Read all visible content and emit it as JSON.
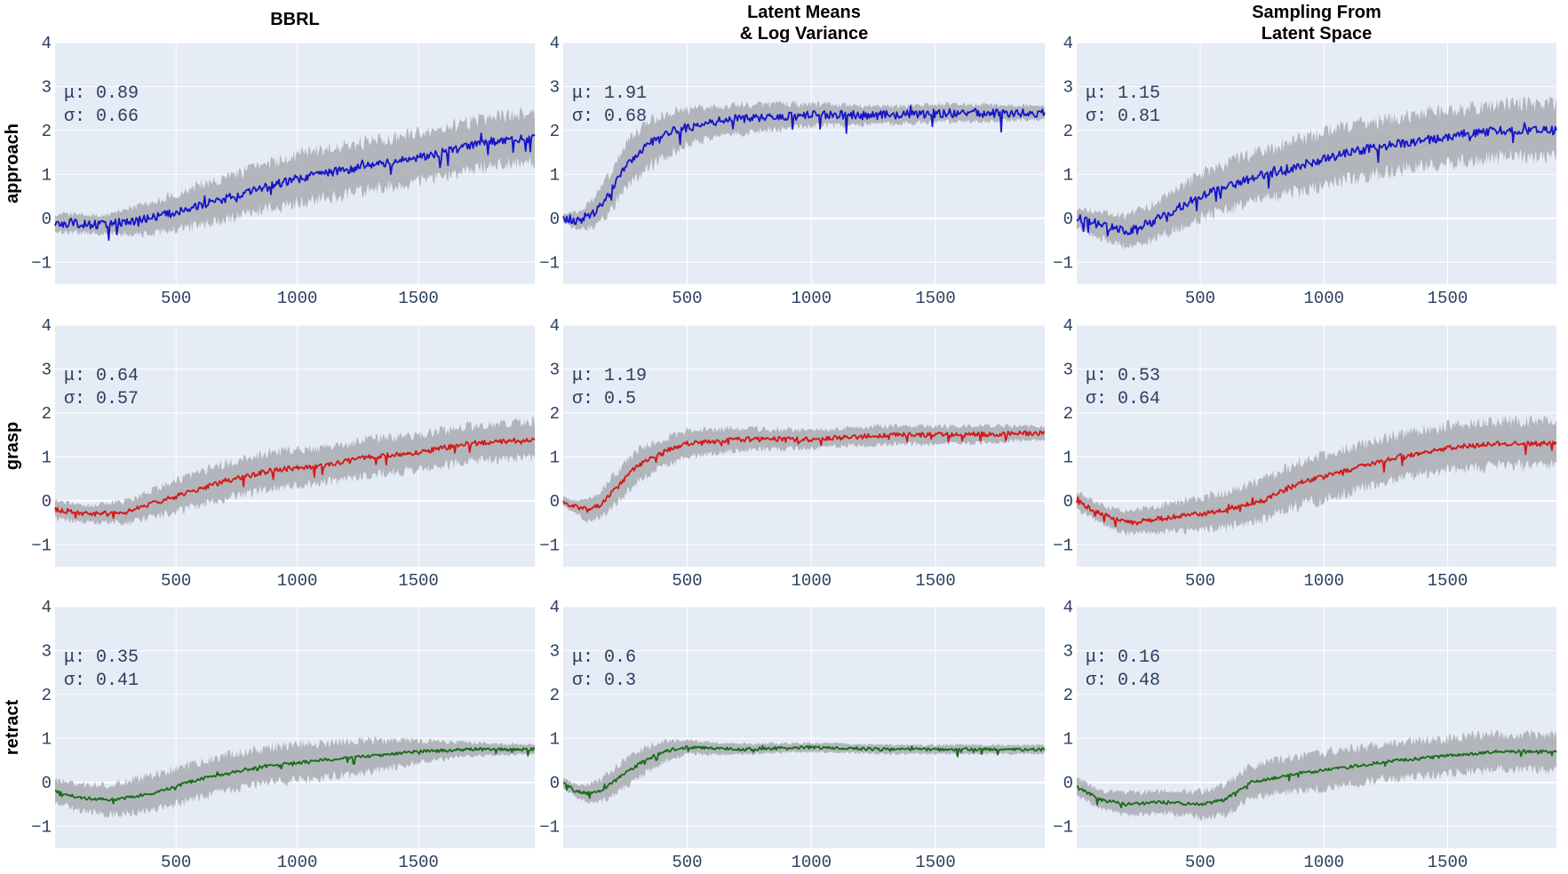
{
  "figure": {
    "columns": [
      "BBRL",
      "Latent Means & Log Variance",
      "Sampling From Latent Space"
    ],
    "column_title_lines": [
      [
        "BBRL"
      ],
      [
        "Latent Means",
        "& Log Variance"
      ],
      [
        "Sampling From",
        "Latent Space"
      ]
    ],
    "rows": [
      "approach",
      "grasp",
      "retract"
    ],
    "row_colors": {
      "approach": "#1515c8",
      "grasp": "#d41717",
      "retract": "#176b17"
    },
    "band_color": "#a9abb0",
    "plot_bg": "#e5ecf6",
    "grid_color": "#ffffff"
  },
  "chart_data": [
    {
      "type": "line",
      "row": "approach",
      "column": "BBRL",
      "x_range": [
        1,
        1980
      ],
      "ylim": [
        -1.5,
        4
      ],
      "xticks": [
        500,
        1000,
        1500
      ],
      "yticks": [
        -1,
        0,
        1,
        2,
        3,
        4
      ],
      "xtick_labels": [
        "500",
        "1000",
        "1500"
      ],
      "ytick_labels": [
        "−1",
        "0",
        "1",
        "2",
        "3",
        "4"
      ],
      "mu_label": "μ: 0.89",
      "sigma_label": "σ: 0.66",
      "series": [
        {
          "name": "mean",
          "x": [
            0,
            200,
            400,
            600,
            800,
            1000,
            1200,
            1400,
            1600,
            1800,
            1980
          ],
          "values": [
            -0.1,
            -0.15,
            0.0,
            0.3,
            0.6,
            0.9,
            1.1,
            1.3,
            1.5,
            1.75,
            1.85
          ],
          "std": [
            0.2,
            0.2,
            0.35,
            0.45,
            0.5,
            0.55,
            0.55,
            0.55,
            0.55,
            0.55,
            0.55
          ]
        }
      ]
    },
    {
      "type": "line",
      "row": "approach",
      "column": "Latent Means & Log Variance",
      "x_range": [
        1,
        1940
      ],
      "ylim": [
        -1.5,
        4
      ],
      "xticks": [
        500,
        1000,
        1500
      ],
      "yticks": [
        -1,
        0,
        1,
        2,
        3,
        4
      ],
      "xtick_labels": [
        "500",
        "1000",
        "1500"
      ],
      "ytick_labels": [
        "−1",
        "0",
        "1",
        "2",
        "3",
        "4"
      ],
      "mu_label": "μ: 1.91",
      "sigma_label": "σ: 0.68",
      "series": [
        {
          "name": "mean",
          "x": [
            0,
            60,
            120,
            180,
            250,
            350,
            450,
            600,
            800,
            1000,
            1300,
            1600,
            1940
          ],
          "values": [
            0.0,
            -0.05,
            0.1,
            0.5,
            1.2,
            1.7,
            2.0,
            2.2,
            2.3,
            2.35,
            2.35,
            2.4,
            2.4
          ],
          "std": [
            0.1,
            0.2,
            0.3,
            0.45,
            0.5,
            0.5,
            0.45,
            0.35,
            0.3,
            0.25,
            0.2,
            0.2,
            0.15
          ]
        }
      ]
    },
    {
      "type": "line",
      "row": "approach",
      "column": "Sampling From Latent Space",
      "x_range": [
        1,
        1940
      ],
      "ylim": [
        -1.5,
        4
      ],
      "xticks": [
        500,
        1000,
        1500
      ],
      "yticks": [
        -1,
        0,
        1,
        2,
        3,
        4
      ],
      "xtick_labels": [
        "500",
        "1000",
        "1500"
      ],
      "ytick_labels": [
        "−1",
        "0",
        "1",
        "2",
        "3",
        "4"
      ],
      "mu_label": "μ: 1.15",
      "sigma_label": "σ: 0.81",
      "series": [
        {
          "name": "mean",
          "x": [
            0,
            100,
            200,
            300,
            400,
            500,
            700,
            900,
            1100,
            1300,
            1500,
            1700,
            1940
          ],
          "values": [
            0.0,
            -0.15,
            -0.3,
            -0.1,
            0.2,
            0.5,
            0.9,
            1.2,
            1.5,
            1.7,
            1.85,
            2.0,
            2.0
          ],
          "std": [
            0.2,
            0.3,
            0.35,
            0.4,
            0.45,
            0.5,
            0.55,
            0.6,
            0.6,
            0.6,
            0.6,
            0.6,
            0.6
          ]
        }
      ]
    },
    {
      "type": "line",
      "row": "grasp",
      "column": "BBRL",
      "x_range": [
        1,
        1980
      ],
      "ylim": [
        -1.5,
        4
      ],
      "xticks": [
        500,
        1000,
        1500
      ],
      "yticks": [
        -1,
        0,
        1,
        2,
        3,
        4
      ],
      "xtick_labels": [
        "500",
        "1000",
        "1500"
      ],
      "ytick_labels": [
        "−1",
        "0",
        "1",
        "2",
        "3",
        "4"
      ],
      "mu_label": "μ: 0.64",
      "sigma_label": "σ: 0.57",
      "series": [
        {
          "name": "mean",
          "x": [
            0,
            150,
            300,
            500,
            700,
            900,
            1100,
            1300,
            1500,
            1700,
            1980
          ],
          "values": [
            -0.2,
            -0.3,
            -0.25,
            0.1,
            0.45,
            0.7,
            0.8,
            1.0,
            1.1,
            1.3,
            1.4
          ],
          "std": [
            0.2,
            0.2,
            0.25,
            0.35,
            0.4,
            0.4,
            0.4,
            0.4,
            0.4,
            0.4,
            0.4
          ]
        }
      ]
    },
    {
      "type": "line",
      "row": "grasp",
      "column": "Latent Means & Log Variance",
      "x_range": [
        1,
        1940
      ],
      "ylim": [
        -1.5,
        4
      ],
      "xticks": [
        500,
        1000,
        1500
      ],
      "yticks": [
        -1,
        0,
        1,
        2,
        3,
        4
      ],
      "xtick_labels": [
        "500",
        "1000",
        "1500"
      ],
      "ytick_labels": [
        "−1",
        "0",
        "1",
        "2",
        "3",
        "4"
      ],
      "mu_label": "μ: 1.19",
      "sigma_label": " σ: 0.5",
      "series": [
        {
          "name": "mean",
          "x": [
            0,
            50,
            100,
            150,
            200,
            300,
            400,
            500,
            700,
            1000,
            1300,
            1600,
            1940
          ],
          "values": [
            0.0,
            -0.15,
            -0.2,
            -0.1,
            0.2,
            0.8,
            1.1,
            1.3,
            1.4,
            1.4,
            1.5,
            1.5,
            1.55
          ],
          "std": [
            0.1,
            0.15,
            0.25,
            0.3,
            0.35,
            0.35,
            0.3,
            0.3,
            0.25,
            0.2,
            0.2,
            0.2,
            0.15
          ]
        }
      ]
    },
    {
      "type": "line",
      "row": "grasp",
      "column": "Sampling From Latent Space",
      "x_range": [
        1,
        1940
      ],
      "ylim": [
        -1.5,
        4
      ],
      "xticks": [
        500,
        1000,
        1500
      ],
      "yticks": [
        -1,
        0,
        1,
        2,
        3,
        4
      ],
      "xtick_labels": [
        "500",
        "1000",
        "1500"
      ],
      "ytick_labels": [
        "−1",
        "0",
        "1",
        "2",
        "3",
        "4"
      ],
      "mu_label": "μ: 0.53",
      "sigma_label": "σ: 0.64",
      "series": [
        {
          "name": "mean",
          "x": [
            0,
            100,
            200,
            350,
            500,
            600,
            750,
            900,
            1100,
            1300,
            1500,
            1700,
            1940
          ],
          "values": [
            0.0,
            -0.3,
            -0.5,
            -0.4,
            -0.3,
            -0.2,
            0.0,
            0.4,
            0.7,
            1.0,
            1.2,
            1.3,
            1.3
          ],
          "std": [
            0.2,
            0.2,
            0.25,
            0.3,
            0.35,
            0.4,
            0.45,
            0.5,
            0.5,
            0.5,
            0.5,
            0.5,
            0.5
          ]
        }
      ]
    },
    {
      "type": "line",
      "row": "retract",
      "column": "BBRL",
      "x_range": [
        1,
        1980
      ],
      "ylim": [
        -1.5,
        4
      ],
      "xticks": [
        500,
        1000,
        1500
      ],
      "yticks": [
        -1,
        0,
        1,
        2,
        3,
        4
      ],
      "xtick_labels": [
        "500",
        "1000",
        "1500"
      ],
      "ytick_labels": [
        "−1",
        "0",
        "1",
        "2",
        "3",
        "4"
      ],
      "mu_label": "μ: 0.35",
      "sigma_label": "σ: 0.41",
      "series": [
        {
          "name": "mean",
          "x": [
            0,
            100,
            250,
            400,
            550,
            700,
            900,
            1100,
            1300,
            1500,
            1700,
            1980
          ],
          "values": [
            -0.2,
            -0.35,
            -0.4,
            -0.25,
            0.0,
            0.2,
            0.4,
            0.5,
            0.6,
            0.7,
            0.75,
            0.75
          ],
          "std": [
            0.25,
            0.3,
            0.35,
            0.4,
            0.4,
            0.4,
            0.4,
            0.4,
            0.35,
            0.25,
            0.15,
            0.1
          ]
        }
      ]
    },
    {
      "type": "line",
      "row": "retract",
      "column": "Latent Means & Log Variance",
      "x_range": [
        1,
        1940
      ],
      "ylim": [
        -1.5,
        4
      ],
      "xticks": [
        500,
        1000,
        1500
      ],
      "yticks": [
        -1,
        0,
        1,
        2,
        3,
        4
      ],
      "xtick_labels": [
        "500",
        "1000",
        "1500"
      ],
      "ytick_labels": [
        "−1",
        "0",
        "1",
        "2",
        "3",
        "4"
      ],
      "mu_label": "μ: 0.6",
      "sigma_label": "σ: 0.3",
      "series": [
        {
          "name": "mean",
          "x": [
            0,
            50,
            100,
            150,
            200,
            300,
            400,
            500,
            700,
            1000,
            1300,
            1600,
            1940
          ],
          "values": [
            0.0,
            -0.2,
            -0.25,
            -0.2,
            0.0,
            0.4,
            0.7,
            0.8,
            0.75,
            0.8,
            0.75,
            0.75,
            0.75
          ],
          "std": [
            0.1,
            0.15,
            0.2,
            0.25,
            0.3,
            0.3,
            0.25,
            0.15,
            0.12,
            0.1,
            0.1,
            0.1,
            0.1
          ]
        }
      ]
    },
    {
      "type": "line",
      "row": "retract",
      "column": "Sampling From Latent Space",
      "x_range": [
        1,
        1940
      ],
      "ylim": [
        -1.5,
        4
      ],
      "xticks": [
        500,
        1000,
        1500
      ],
      "yticks": [
        -1,
        0,
        1,
        2,
        3,
        4
      ],
      "xtick_labels": [
        "500",
        "1000",
        "1500"
      ],
      "ytick_labels": [
        "−1",
        "0",
        "1",
        "2",
        "3",
        "4"
      ],
      "mu_label": "μ: 0.16",
      "sigma_label": "σ: 0.48",
      "series": [
        {
          "name": "mean",
          "x": [
            0,
            100,
            200,
            350,
            500,
            600,
            700,
            900,
            1100,
            1300,
            1500,
            1700,
            1940
          ],
          "values": [
            -0.1,
            -0.4,
            -0.5,
            -0.45,
            -0.5,
            -0.4,
            0.0,
            0.2,
            0.35,
            0.5,
            0.6,
            0.7,
            0.7
          ],
          "std": [
            0.2,
            0.2,
            0.25,
            0.25,
            0.3,
            0.35,
            0.35,
            0.4,
            0.4,
            0.4,
            0.4,
            0.4,
            0.4
          ]
        }
      ]
    }
  ]
}
